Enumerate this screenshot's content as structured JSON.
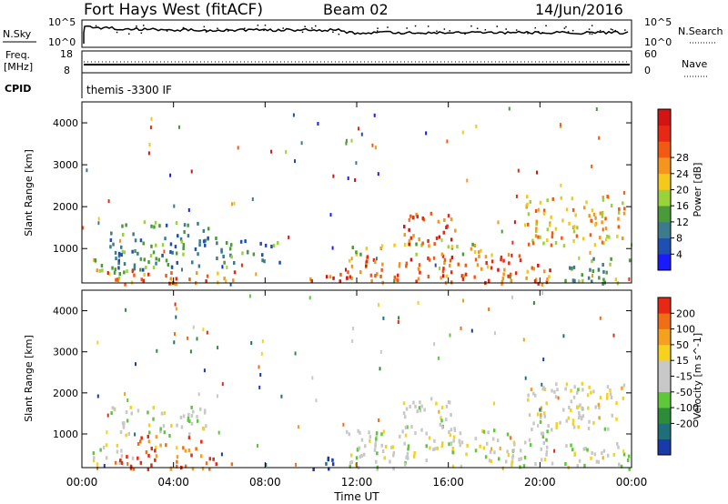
{
  "header": {
    "station": "Fort Hays West (fitACF)",
    "beam": "Beam 02",
    "date": "14/Jun/2016"
  },
  "top_panels": {
    "nsky_label": "N.Sky",
    "nsky_ticks": [
      "10^5",
      "10^0"
    ],
    "nsearch_label": "N.Search",
    "nsearch_ticks": [
      "10^5",
      "10^0"
    ],
    "freq_label_1": "Freq.",
    "freq_label_2": "[MHz]",
    "freq_ticks": [
      "18",
      "8"
    ],
    "nave_label": "Nave",
    "nave_ticks": [
      "60",
      "0"
    ],
    "cpid_label": "CPID",
    "cpid_text": "themis -3300 IF"
  },
  "chart_data": [
    {
      "type": "heatmap",
      "title": "",
      "xlabel": "Time UT",
      "ylabel": "Slant Range [km]",
      "x_ticks": [
        "00:00",
        "04:00",
        "08:00",
        "12:00",
        "16:00",
        "20:00",
        "00:00"
      ],
      "y_ticks": [
        1000,
        2000,
        3000,
        4000
      ],
      "xlim_hours": [
        0,
        24
      ],
      "ylim_km": [
        180,
        4500
      ],
      "colorbar": {
        "label": "Power [dB]",
        "ticks": [
          "4",
          "8",
          "12",
          "16",
          "20",
          "24",
          "28"
        ],
        "colors": [
          "#1a1aff",
          "#1f4fb0",
          "#3c7a8c",
          "#4a9a3a",
          "#9ad23a",
          "#f2c91c",
          "#f5961c",
          "#f25a14",
          "#e62814",
          "#d21414"
        ]
      },
      "regions": [
        {
          "t0": 0.4,
          "t1": 2.2,
          "r0": 300,
          "r1": 800,
          "level": 0.45
        },
        {
          "t0": 1.4,
          "t1": 6.8,
          "r0": 180,
          "r1": 500,
          "level": 0.7
        },
        {
          "t0": 1.2,
          "t1": 5.5,
          "r0": 500,
          "r1": 1700,
          "level": 0.3
        },
        {
          "t0": 5.8,
          "t1": 8.6,
          "r0": 700,
          "r1": 1300,
          "level": 0.3
        },
        {
          "t0": 9.8,
          "t1": 11.3,
          "r0": 180,
          "r1": 450,
          "level": 0.85
        },
        {
          "t0": 11.5,
          "t1": 20.5,
          "r0": 180,
          "r1": 900,
          "level": 0.75
        },
        {
          "t0": 11.5,
          "t1": 17.5,
          "r0": 900,
          "r1": 1150,
          "level": 0.5
        },
        {
          "t0": 14.0,
          "t1": 16.3,
          "r0": 1100,
          "r1": 1900,
          "level": 0.8
        },
        {
          "t0": 19.3,
          "t1": 23.7,
          "r0": 1100,
          "r1": 2300,
          "level": 0.6
        },
        {
          "t0": 21.0,
          "t1": 23.9,
          "r0": 180,
          "r1": 800,
          "level": 0.35
        }
      ]
    },
    {
      "type": "heatmap",
      "title": "",
      "xlabel": "Time UT",
      "ylabel": "Slant Range [km]",
      "x_ticks": [
        "00:00",
        "04:00",
        "08:00",
        "12:00",
        "16:00",
        "20:00",
        "00:00"
      ],
      "y_ticks": [
        1000,
        2000,
        3000,
        4000
      ],
      "xlim_hours": [
        0,
        24
      ],
      "ylim_km": [
        180,
        4500
      ],
      "colorbar": {
        "label": "Velocity [m s^-1]",
        "ticks": [
          "200",
          "100",
          "50",
          "15",
          "-15",
          "-50",
          "-100",
          "-200"
        ],
        "colors": [
          "#1a3aaa",
          "#1f6f7a",
          "#2e8b3a",
          "#5ec83a",
          "#c8c8c8",
          "#c8c8c8",
          "#f5d21e",
          "#f5a01e",
          "#f06e14",
          "#e62814"
        ]
      },
      "regions": [
        {
          "t0": 0.4,
          "t1": 2.2,
          "r0": 300,
          "r1": 800,
          "level": 0.5
        },
        {
          "t0": 1.4,
          "t1": 6.8,
          "r0": 180,
          "r1": 500,
          "level": 0.9
        },
        {
          "t0": 2.4,
          "t1": 5.2,
          "r0": 500,
          "r1": 1000,
          "level": 0.85
        },
        {
          "t0": 1.2,
          "t1": 5.5,
          "r0": 1000,
          "r1": 1700,
          "level": 0.5
        },
        {
          "t0": 9.8,
          "t1": 11.3,
          "r0": 180,
          "r1": 450,
          "level": 0.05
        },
        {
          "t0": 11.5,
          "t1": 20.5,
          "r0": 180,
          "r1": 1150,
          "level": 0.5
        },
        {
          "t0": 14.0,
          "t1": 16.3,
          "r0": 1100,
          "r1": 1900,
          "level": 0.5
        },
        {
          "t0": 19.3,
          "t1": 23.7,
          "r0": 1100,
          "r1": 2300,
          "level": 0.55
        },
        {
          "t0": 21.0,
          "t1": 23.9,
          "r0": 180,
          "r1": 800,
          "level": 0.5
        }
      ]
    }
  ]
}
